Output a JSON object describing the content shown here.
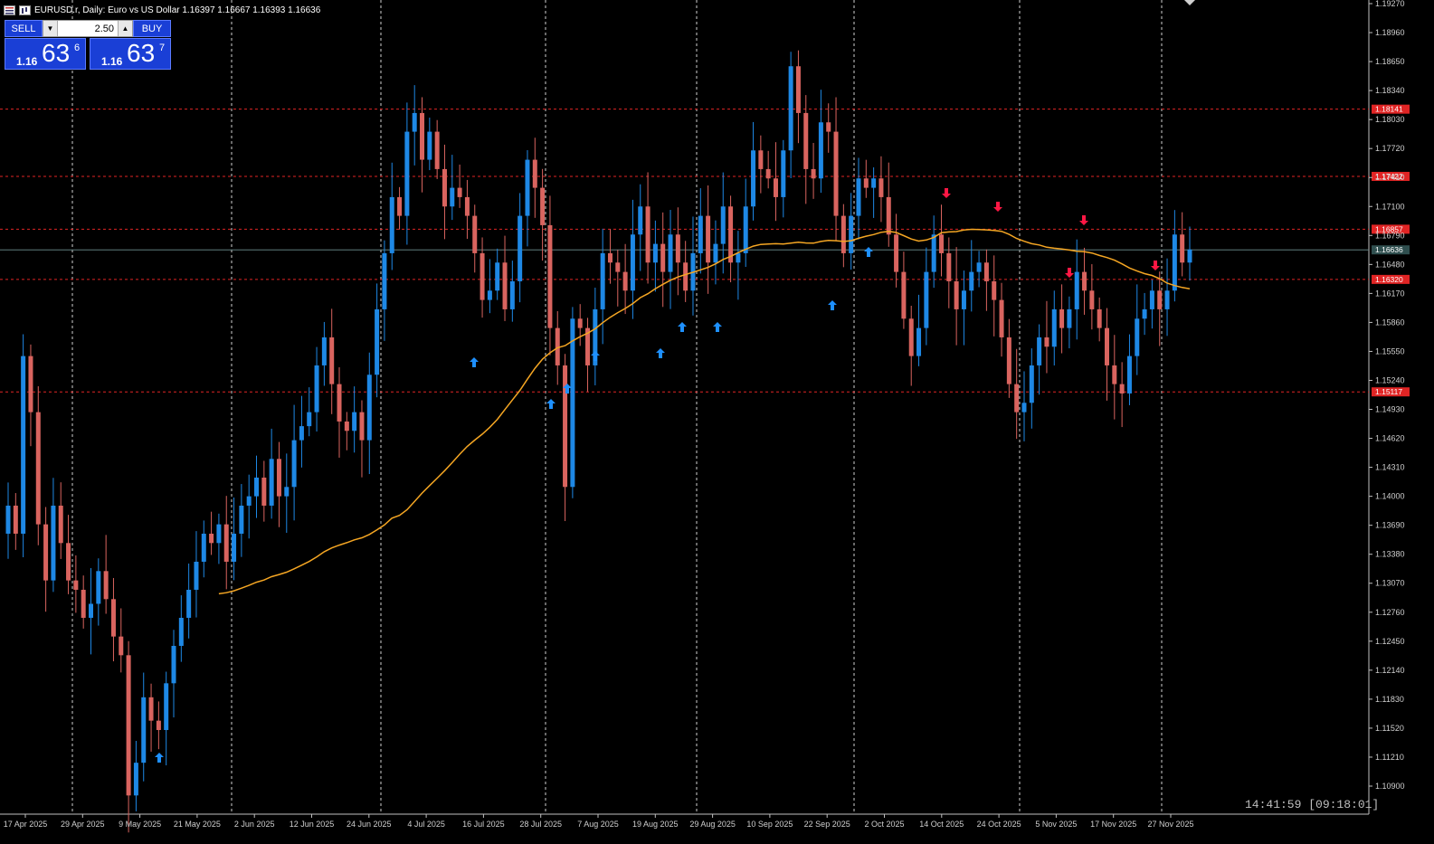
{
  "header": {
    "symbol_title": "EURUSD.r, Daily:  Euro vs US Dollar  1.16397 1.16667 1.16393 1.16636"
  },
  "trade_panel": {
    "sell_label": "SELL",
    "buy_label": "BUY",
    "lot_value": "2.50",
    "sell_quote": {
      "prefix": "1.16",
      "big": "63",
      "sup": "6"
    },
    "buy_quote": {
      "prefix": "1.16",
      "big": "63",
      "sup": "7"
    }
  },
  "clock": "14:41:59 [09:18:01]",
  "colors": {
    "background": "#000000",
    "bull": "#1e88e5",
    "bear": "#d9645f",
    "ma": "#f5a623",
    "level": "#e02424",
    "grid": "#cfcfcf",
    "arrow_up": "#1e90ff",
    "arrow_down": "#ff1744",
    "current_price_bg": "#2f4f4f"
  },
  "chart_data": {
    "type": "candlestick",
    "price_axis_ticks": [
      "1.19270",
      "1.18960",
      "1.18650",
      "1.18340",
      "1.18030",
      "1.17720",
      "1.17410",
      "1.17100",
      "1.16790",
      "1.16480",
      "1.16170",
      "1.15860",
      "1.15550",
      "1.15240",
      "1.14930",
      "1.14620",
      "1.14310",
      "1.14000",
      "1.13690",
      "1.13380",
      "1.13070",
      "1.12760",
      "1.12450",
      "1.12140",
      "1.11830",
      "1.11520",
      "1.11210",
      "1.10900"
    ],
    "time_axis_ticks": [
      "17 Apr 2025",
      "29 Apr 2025",
      "9 May 2025",
      "21 May 2025",
      "2 Jun 2025",
      "12 Jun 2025",
      "24 Jun 2025",
      "4 Jul 2025",
      "16 Jul 2025",
      "28 Jul 2025",
      "7 Aug 2025",
      "19 Aug 2025",
      "29 Aug 2025",
      "10 Sep 2025",
      "22 Sep 2025",
      "2 Oct 2025",
      "14 Oct 2025",
      "24 Oct 2025",
      "5 Nov 2025",
      "17 Nov 2025",
      "27 Nov 2025"
    ],
    "ylim": [
      1.1075,
      1.1927
    ],
    "levels": [
      {
        "price": 1.18141,
        "label": "1.18141"
      },
      {
        "price": 1.17422,
        "label": "1.17422"
      },
      {
        "price": 1.16857,
        "label": "1.16857"
      },
      {
        "price": 1.1632,
        "label": "1.16320"
      },
      {
        "price": 1.15117,
        "label": "1.15117"
      }
    ],
    "current_price": {
      "price": 1.16636,
      "label": "1.16636"
    },
    "ohlc_closes": [
      1.139,
      1.136,
      1.155,
      1.149,
      1.137,
      1.131,
      1.139,
      1.135,
      1.131,
      1.13,
      1.127,
      1.1285,
      1.132,
      1.129,
      1.125,
      1.123,
      1.108,
      1.1115,
      1.1185,
      1.116,
      1.115,
      1.12,
      1.124,
      1.127,
      1.13,
      1.133,
      1.136,
      1.135,
      1.137,
      1.133,
      1.136,
      1.139,
      1.14,
      1.142,
      1.139,
      1.144,
      1.14,
      1.141,
      1.146,
      1.1475,
      1.149,
      1.154,
      1.157,
      1.152,
      1.148,
      1.147,
      1.149,
      1.146,
      1.153,
      1.16,
      1.166,
      1.172,
      1.17,
      1.179,
      1.181,
      1.176,
      1.179,
      1.175,
      1.171,
      1.173,
      1.172,
      1.17,
      1.166,
      1.161,
      1.162,
      1.165,
      1.16,
      1.163,
      1.17,
      1.176,
      1.173,
      1.169,
      1.158,
      1.154,
      1.141,
      1.159,
      1.158,
      1.154,
      1.16,
      1.166,
      1.165,
      1.164,
      1.162,
      1.168,
      1.171,
      1.165,
      1.167,
      1.164,
      1.168,
      1.165,
      1.162,
      1.166,
      1.17,
      1.165,
      1.167,
      1.171,
      1.165,
      1.166,
      1.171,
      1.177,
      1.175,
      1.174,
      1.172,
      1.177,
      1.186,
      1.181,
      1.175,
      1.174,
      1.18,
      1.179,
      1.17,
      1.166,
      1.17,
      1.174,
      1.173,
      1.174,
      1.172,
      1.168,
      1.164,
      1.159,
      1.155,
      1.158,
      1.164,
      1.168,
      1.166,
      1.163,
      1.16,
      1.162,
      1.164,
      1.165,
      1.163,
      1.161,
      1.157,
      1.152,
      1.149,
      1.15,
      1.154,
      1.157,
      1.156,
      1.16,
      1.158,
      1.16,
      1.164,
      1.162,
      1.16,
      1.158,
      1.154,
      1.152,
      1.151,
      1.155,
      1.159,
      1.16,
      1.162,
      1.16,
      1.162,
      1.168,
      1.165,
      1.1664
    ],
    "signals_up": 14,
    "signals_down": 5
  }
}
